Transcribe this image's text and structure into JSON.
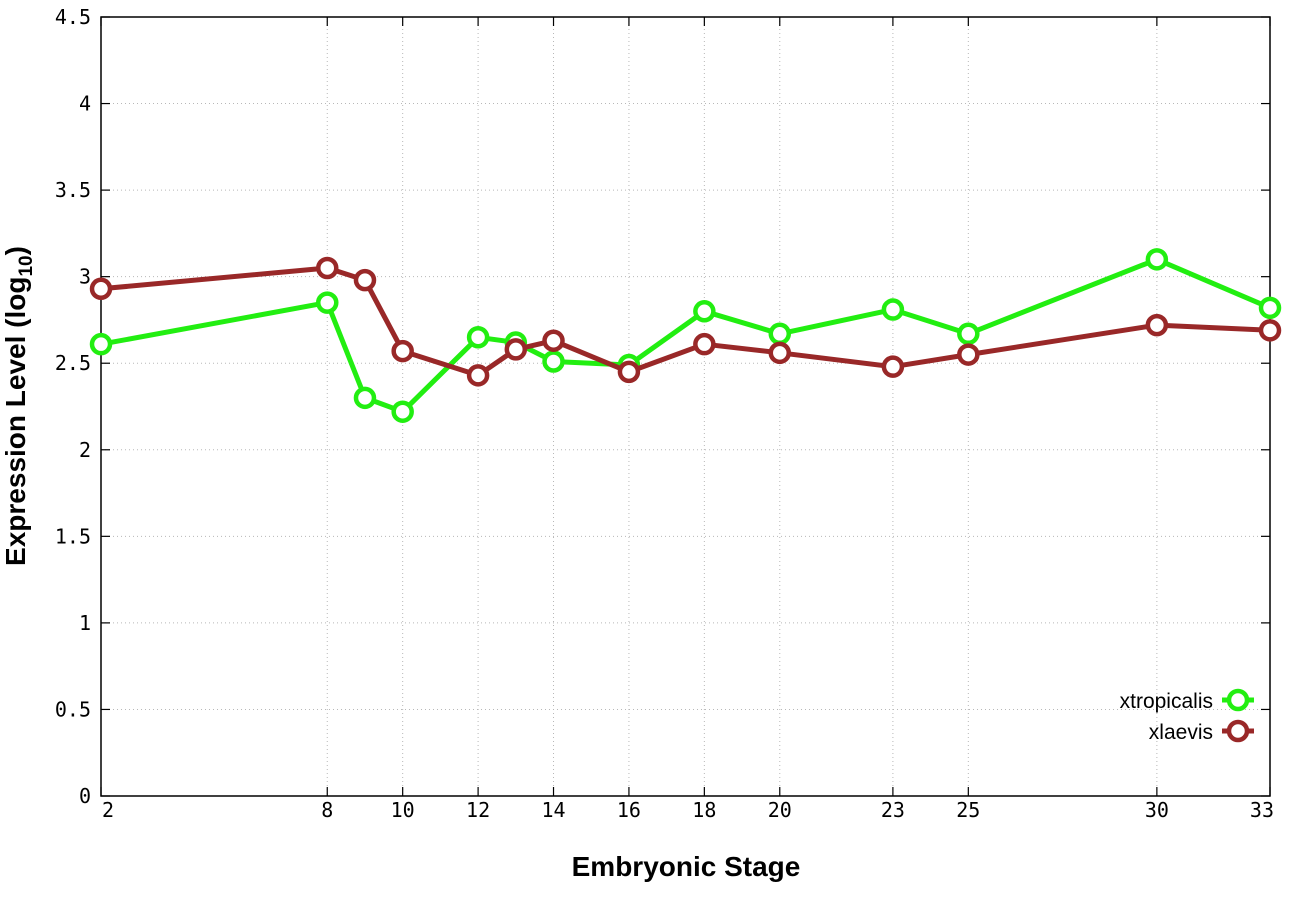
{
  "chart_data": {
    "type": "line",
    "xlabel": "Embryonic Stage",
    "ylabel_main": "Expression Level (log",
    "ylabel_sub": "10",
    "ylabel_close": ")",
    "xlim": [
      2,
      33
    ],
    "ylim": [
      0,
      4.5
    ],
    "x_ticks": [
      2,
      8,
      10,
      12,
      14,
      16,
      18,
      20,
      23,
      25,
      30,
      33
    ],
    "y_ticks": [
      0,
      0.5,
      1,
      1.5,
      2,
      2.5,
      3,
      3.5,
      4,
      4.5
    ],
    "y_tick_labels": [
      "0",
      "0.5",
      "1",
      "1.5",
      "2",
      "2.5",
      "3",
      "3.5",
      "4",
      "4.5"
    ],
    "grid": true,
    "legend_position": "bottom-right",
    "x": [
      2,
      8,
      9,
      10,
      12,
      13,
      14,
      16,
      18,
      20,
      23,
      25,
      30,
      33
    ],
    "series": [
      {
        "name": "xtropicalis",
        "color": "#22ee11",
        "values": [
          2.61,
          2.85,
          2.3,
          2.22,
          2.65,
          2.62,
          2.51,
          2.49,
          2.8,
          2.67,
          2.81,
          2.67,
          3.1,
          2.82
        ]
      },
      {
        "name": "xlaevis",
        "color": "#992828",
        "values": [
          2.93,
          3.05,
          2.98,
          2.57,
          2.43,
          2.58,
          2.63,
          2.45,
          2.61,
          2.56,
          2.48,
          2.55,
          2.72,
          2.69
        ]
      }
    ]
  }
}
